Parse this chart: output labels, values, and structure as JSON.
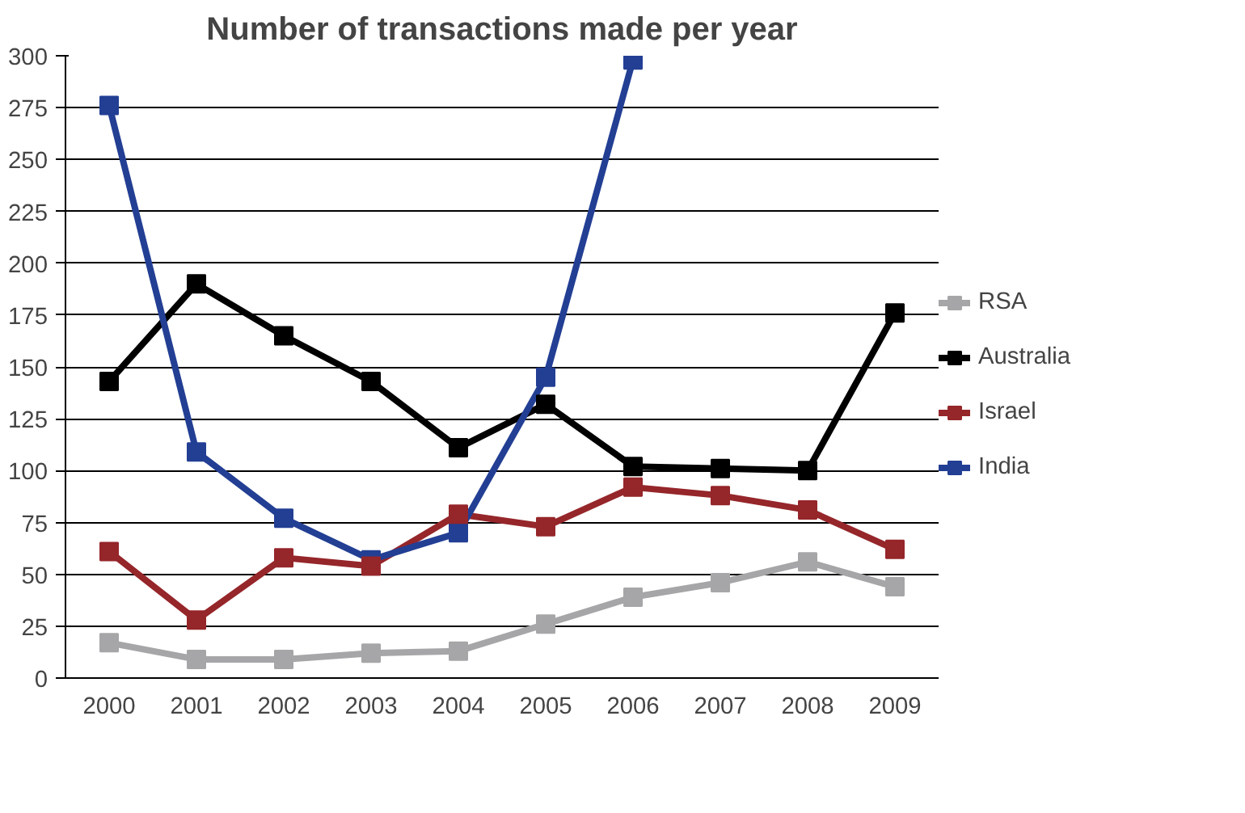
{
  "chart_data": {
    "type": "line",
    "title": "Number of transactions made per year",
    "categories": [
      "2000",
      "2001",
      "2002",
      "2003",
      "2004",
      "2005",
      "2006",
      "2007",
      "2008",
      "2009"
    ],
    "series": [
      {
        "name": "RSA",
        "color": "#a6a6a8",
        "values": [
          17,
          9,
          9,
          12,
          13,
          26,
          39,
          46,
          56,
          44
        ]
      },
      {
        "name": "Australia",
        "color": "#000000",
        "values": [
          143,
          190,
          165,
          143,
          111,
          132,
          102,
          101,
          100,
          176
        ]
      },
      {
        "name": "Israel",
        "color": "#95262a",
        "values": [
          61,
          28,
          58,
          54,
          79,
          73,
          92,
          88,
          81,
          62
        ]
      },
      {
        "name": "India",
        "color": "#233f94",
        "values": [
          276,
          109,
          77,
          57,
          70,
          145,
          298,
          null,
          null,
          null
        ]
      }
    ],
    "ylim": [
      0,
      300
    ],
    "yticks": [
      0,
      25,
      50,
      75,
      100,
      125,
      150,
      175,
      200,
      225,
      250,
      275,
      300
    ],
    "grid": "y",
    "legend": "right",
    "marker": "square",
    "line_style": "solid"
  }
}
